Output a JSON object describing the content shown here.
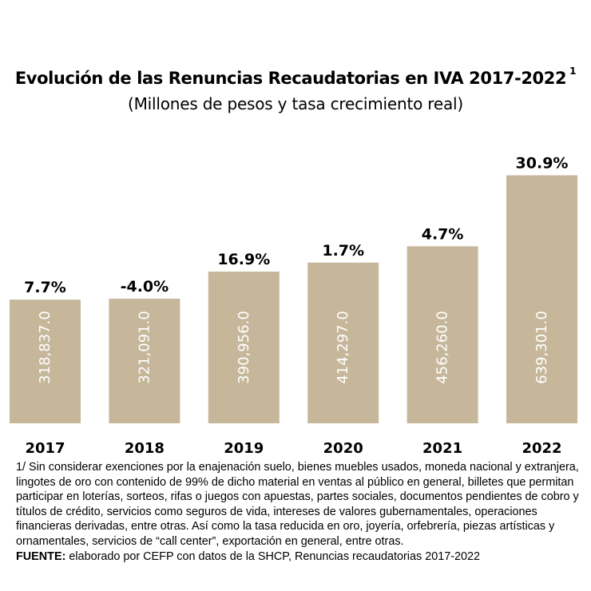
{
  "title": "Evolución de las Renuncias Recaudatorias en IVA 2017-2022",
  "title_note": "1",
  "subtitle": "(Millones de pesos y tasa crecimiento real)",
  "footnote": "1/ Sin considerar exenciones por la enajenación suelo, bienes muebles usados, moneda nacional y extranjera, lingotes de oro con contenido de 99% de dicho material en ventas al público en general, billetes que permitan participar en loterías, sorteos, rifas o juegos con apuestas, partes sociales, documentos pendientes de cobro y títulos de crédito, servicios como seguros de vida, intereses de valores gubernamentales, operaciones financieras derivadas, entre otras. Así como la tasa reducida en oro, joyería, orfebrería, piezas artísticas y ornamentales, servicios de “call center”, exportación en general, entre otras.",
  "source": {
    "label": "FUENTE:",
    "text": "elaborado por CEFP con datos de la SHCP, Renuncias recaudatorias 2017-2022"
  },
  "colors": {
    "bar": "#c6b79b",
    "bar_text": "#ffffff",
    "text": "#000000"
  },
  "chart_data": {
    "type": "bar",
    "categories": [
      "2017",
      "2018",
      "2019",
      "2020",
      "2021",
      "2022"
    ],
    "values": [
      318837.0,
      321091.0,
      390956.0,
      414297.0,
      456260.0,
      639301.0
    ],
    "value_labels": [
      "318,837.0",
      "321,091.0",
      "390,956.0",
      "414,297.0",
      "456,260.0",
      "639,301.0"
    ],
    "growth_labels": [
      "7.7%",
      "-4.0%",
      "16.9%",
      "1.7%",
      "4.7%",
      "30.9%"
    ],
    "ylim": [
      0,
      700000
    ],
    "grid": false,
    "legend": "none"
  }
}
